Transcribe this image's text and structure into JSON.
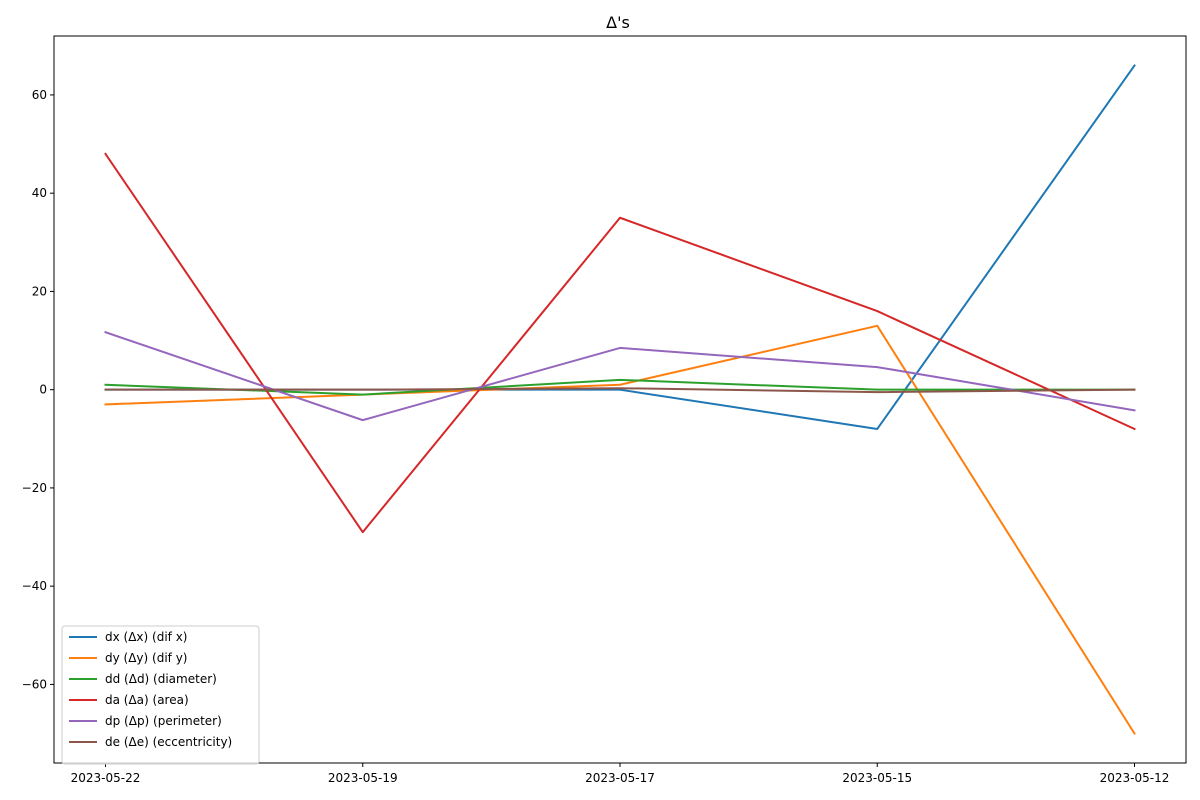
{
  "chart_data": {
    "type": "line",
    "title": "Δ's",
    "xlabel": "",
    "ylabel": "",
    "x": [
      "2023-05-22",
      "2023-05-19",
      "2023-05-17",
      "2023-05-15",
      "2023-05-12"
    ],
    "ylim": [
      -76,
      72
    ],
    "yticks": [
      -60,
      -40,
      -20,
      0,
      20,
      40,
      60
    ],
    "grid": false,
    "legend_position": "lower-left",
    "series": [
      {
        "name": "dx (Δx) (dif x)",
        "color": "#1f77b4",
        "values": [
          0,
          0,
          0,
          -8,
          66
        ]
      },
      {
        "name": "dy (Δy) (dif y)",
        "color": "#ff7f0e",
        "values": [
          -3,
          -1,
          1,
          13,
          -70
        ]
      },
      {
        "name": "dd (Δd) (diameter)",
        "color": "#2ca02c",
        "values": [
          1,
          -1,
          2,
          0,
          0
        ]
      },
      {
        "name": "da (Δa) (area)",
        "color": "#d62728",
        "values": [
          48,
          -29,
          35,
          16,
          -8
        ]
      },
      {
        "name": "dp (Δp) (perimeter)",
        "color": "#9467bd",
        "values": [
          11.7,
          -6.2,
          8.5,
          4.6,
          -4.2
        ]
      },
      {
        "name": "de (Δe) (eccentricity)",
        "color": "#8c564b",
        "values": [
          0,
          0,
          0.3,
          -0.5,
          0
        ]
      }
    ]
  }
}
